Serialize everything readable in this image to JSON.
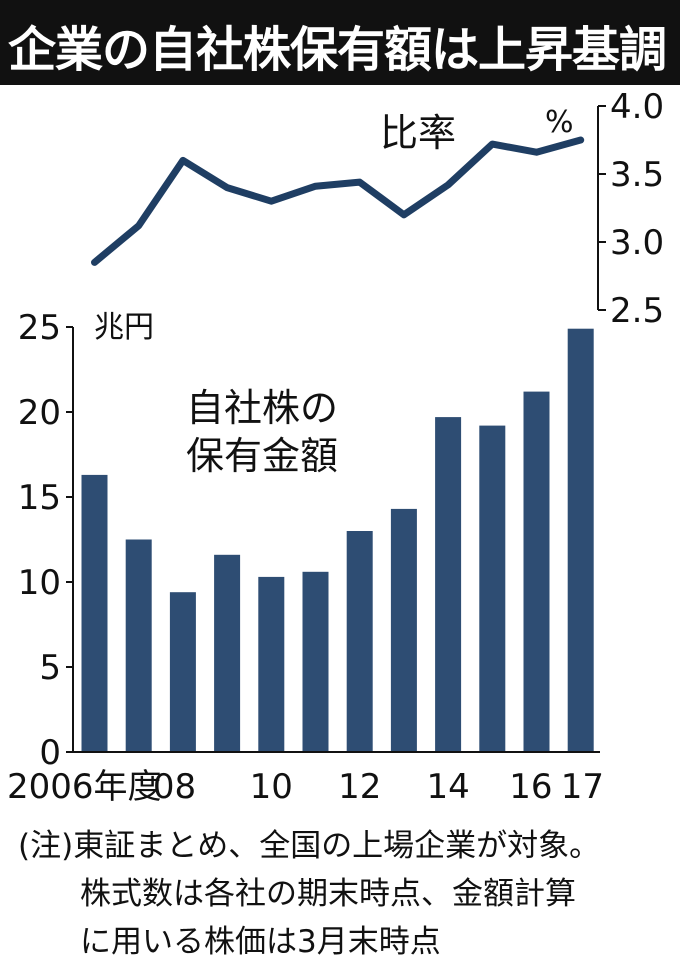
{
  "title": "企業の自社株保有額は上昇基調",
  "note": [
    "(注)東証まとめ、全国の上場企業が対象。",
    "　　株式数は各社の期末時点、金額計算",
    "　　に用いる株価は3月末時点"
  ],
  "chart_data": {
    "type": "bar+line",
    "categories": [
      "2006",
      "2007",
      "2008",
      "2009",
      "2010",
      "2011",
      "2012",
      "2013",
      "2014",
      "2015",
      "2016",
      "2017"
    ],
    "x_tick_labels": [
      {
        "index": 0,
        "label": "2006年度"
      },
      {
        "index": 2,
        "label": "08"
      },
      {
        "index": 4,
        "label": "10"
      },
      {
        "index": 6,
        "label": "12"
      },
      {
        "index": 8,
        "label": "14"
      },
      {
        "index": 10,
        "label": "16"
      },
      {
        "index": 11,
        "label": "17"
      }
    ],
    "bar_series": {
      "label_lines": [
        "自社株の",
        "保有金額"
      ],
      "unit": "兆円",
      "values": [
        16.3,
        12.5,
        9.4,
        11.6,
        10.3,
        10.6,
        13.0,
        14.3,
        19.7,
        19.2,
        21.2,
        24.9
      ],
      "ylim": [
        0,
        25
      ],
      "yticks": [
        0,
        5,
        10,
        15,
        20,
        25
      ],
      "color": "#2e4d73"
    },
    "line_series": {
      "label": "比率",
      "unit": "%",
      "values": [
        2.85,
        3.12,
        3.6,
        3.4,
        3.3,
        3.41,
        3.44,
        3.2,
        3.42,
        3.72,
        3.66,
        3.75
      ],
      "ylim": [
        2.5,
        4.0
      ],
      "yticks": [
        "2.5",
        "3.0",
        "3.5",
        "4.0"
      ],
      "axis_position": "right",
      "color": "#1f3e63"
    }
  }
}
